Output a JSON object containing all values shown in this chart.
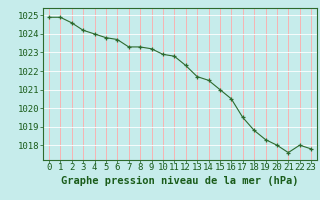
{
  "x": [
    0,
    1,
    2,
    3,
    4,
    5,
    6,
    7,
    8,
    9,
    10,
    11,
    12,
    13,
    14,
    15,
    16,
    17,
    18,
    19,
    20,
    21,
    22,
    23
  ],
  "y": [
    1024.9,
    1024.9,
    1024.6,
    1024.2,
    1024.0,
    1023.8,
    1023.7,
    1023.3,
    1023.3,
    1023.2,
    1022.9,
    1022.8,
    1022.3,
    1021.7,
    1021.5,
    1021.0,
    1020.5,
    1019.5,
    1018.8,
    1018.3,
    1018.0,
    1017.6,
    1018.0,
    1017.8
  ],
  "line_color": "#2d6a2d",
  "marker": "+",
  "marker_color": "#2d6a2d",
  "bg_color": "#c6eceb",
  "grid_color_x": "#ffaaaa",
  "grid_color_y": "#ffffff",
  "xlabel": "Graphe pression niveau de la mer (hPa)",
  "xlabel_color": "#1a5c1a",
  "tick_color": "#1a5c1a",
  "axis_color": "#2d6a2d",
  "ylim": [
    1017.2,
    1025.4
  ],
  "xlim": [
    -0.5,
    23.5
  ],
  "yticks": [
    1018,
    1019,
    1020,
    1021,
    1022,
    1023,
    1024,
    1025
  ],
  "xticks": [
    0,
    1,
    2,
    3,
    4,
    5,
    6,
    7,
    8,
    9,
    10,
    11,
    12,
    13,
    14,
    15,
    16,
    17,
    18,
    19,
    20,
    21,
    22,
    23
  ],
  "xlabel_fontsize": 7.5,
  "tick_fontsize": 6.5
}
